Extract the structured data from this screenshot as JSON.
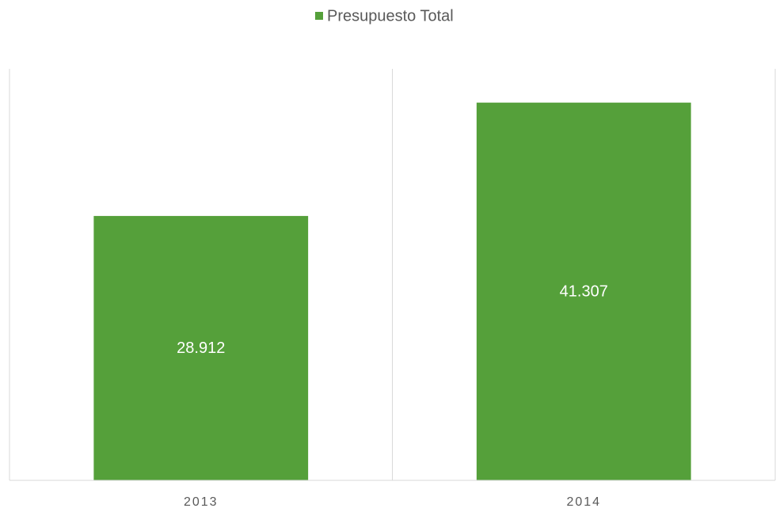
{
  "chart_data": {
    "type": "bar",
    "categories": [
      "2013",
      "2014"
    ],
    "series": [
      {
        "name": "Presupuesto Total",
        "color": "#55a03a",
        "values": [
          28912,
          41307
        ],
        "value_labels": [
          "28.912",
          "41.307"
        ]
      }
    ],
    "ylim": [
      0,
      45000
    ],
    "legend": "top"
  }
}
